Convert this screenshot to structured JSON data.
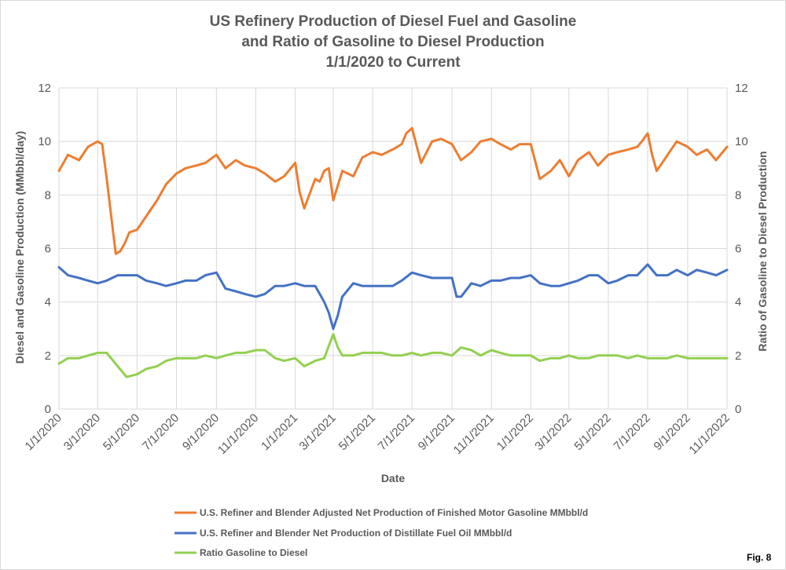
{
  "chart_data": {
    "type": "line",
    "title": [
      "US Refinery Production of Diesel Fuel and Gasoline",
      "and Ratio of Gasoline to Diesel Production",
      "1/1/2020 to Current"
    ],
    "xlabel": "Date",
    "ylabel_left": "Diesel and Gasoline Production (MMbbl/day)",
    "ylabel_right": "Ratio of Gasoline to Diesel Production",
    "ylim": [
      0,
      12
    ],
    "y2lim": [
      0,
      12
    ],
    "yticks": [
      0,
      2,
      4,
      6,
      8,
      10,
      12
    ],
    "xlim": [
      "2020-01-01",
      "2022-11-01"
    ],
    "xticks": [
      {
        "date": "2020-01-01",
        "label": "1/1/2020"
      },
      {
        "date": "2020-03-01",
        "label": "3/1/2020"
      },
      {
        "date": "2020-05-01",
        "label": "5/1/2020"
      },
      {
        "date": "2020-07-01",
        "label": "7/1/2020"
      },
      {
        "date": "2020-09-01",
        "label": "9/1/2020"
      },
      {
        "date": "2020-11-01",
        "label": "11/1/2020"
      },
      {
        "date": "2021-01-01",
        "label": "1/1/2021"
      },
      {
        "date": "2021-03-01",
        "label": "3/1/2021"
      },
      {
        "date": "2021-05-01",
        "label": "5/1/2021"
      },
      {
        "date": "2021-07-01",
        "label": "7/1/2021"
      },
      {
        "date": "2021-09-01",
        "label": "9/1/2021"
      },
      {
        "date": "2021-11-01",
        "label": "11/1/2021"
      },
      {
        "date": "2022-01-01",
        "label": "1/1/2022"
      },
      {
        "date": "2022-03-01",
        "label": "3/1/2022"
      },
      {
        "date": "2022-05-01",
        "label": "5/1/2022"
      },
      {
        "date": "2022-07-01",
        "label": "7/1/2022"
      },
      {
        "date": "2022-09-01",
        "label": "9/1/2022"
      },
      {
        "date": "2022-11-01",
        "label": "11/1/2022"
      }
    ],
    "grid": true,
    "legend_position": "bottom",
    "series": [
      {
        "name": "U.S. Refiner and Blender Adjusted Net Production of Finished Motor Gasoline MMbbl/d",
        "color": "#ED7D31",
        "axis": "left",
        "x": [
          "2020-01-01",
          "2020-01-15",
          "2020-02-01",
          "2020-02-15",
          "2020-03-01",
          "2020-03-08",
          "2020-03-15",
          "2020-03-22",
          "2020-03-29",
          "2020-04-05",
          "2020-04-12",
          "2020-04-19",
          "2020-05-01",
          "2020-05-15",
          "2020-06-01",
          "2020-06-15",
          "2020-07-01",
          "2020-07-15",
          "2020-08-01",
          "2020-08-15",
          "2020-09-01",
          "2020-09-15",
          "2020-10-01",
          "2020-10-15",
          "2020-11-01",
          "2020-11-15",
          "2020-12-01",
          "2020-12-15",
          "2021-01-01",
          "2021-01-08",
          "2021-01-15",
          "2021-02-01",
          "2021-02-08",
          "2021-02-15",
          "2021-02-22",
          "2021-03-01",
          "2021-03-15",
          "2021-04-01",
          "2021-04-15",
          "2021-05-01",
          "2021-05-15",
          "2021-06-01",
          "2021-06-15",
          "2021-06-22",
          "2021-07-01",
          "2021-07-15",
          "2021-08-01",
          "2021-08-15",
          "2021-09-01",
          "2021-09-15",
          "2021-10-01",
          "2021-10-15",
          "2021-11-01",
          "2021-11-15",
          "2021-12-01",
          "2021-12-15",
          "2022-01-01",
          "2022-01-15",
          "2022-02-01",
          "2022-02-15",
          "2022-03-01",
          "2022-03-15",
          "2022-04-01",
          "2022-04-15",
          "2022-05-01",
          "2022-05-15",
          "2022-06-01",
          "2022-06-15",
          "2022-06-22",
          "2022-07-01",
          "2022-07-08",
          "2022-07-15",
          "2022-08-01",
          "2022-08-15",
          "2022-09-01",
          "2022-09-15",
          "2022-10-01",
          "2022-10-15",
          "2022-11-01"
        ],
        "values": [
          8.9,
          9.5,
          9.3,
          9.8,
          10.0,
          9.9,
          8.6,
          7.2,
          5.8,
          5.9,
          6.2,
          6.6,
          6.7,
          7.2,
          7.8,
          8.4,
          8.8,
          9.0,
          9.1,
          9.2,
          9.5,
          9.0,
          9.3,
          9.1,
          9.0,
          8.8,
          8.5,
          8.7,
          9.2,
          8.1,
          7.5,
          8.6,
          8.5,
          8.9,
          9.0,
          7.8,
          8.9,
          8.7,
          9.4,
          9.6,
          9.5,
          9.7,
          9.9,
          10.3,
          10.5,
          9.2,
          10.0,
          10.1,
          9.9,
          9.3,
          9.6,
          10.0,
          10.1,
          9.9,
          9.7,
          9.9,
          9.9,
          8.6,
          8.9,
          9.3,
          8.7,
          9.3,
          9.6,
          9.1,
          9.5,
          9.6,
          9.7,
          9.8,
          10.0,
          10.3,
          9.5,
          8.9,
          9.5,
          10.0,
          9.8,
          9.5,
          9.7,
          9.3,
          9.8
        ]
      },
      {
        "name": "U.S. Refiner and Blender Net Production of Distillate Fuel Oil MMbbl/d",
        "color": "#4472C4",
        "axis": "left",
        "x": [
          "2020-01-01",
          "2020-01-15",
          "2020-02-01",
          "2020-02-15",
          "2020-03-01",
          "2020-03-15",
          "2020-04-01",
          "2020-04-15",
          "2020-05-01",
          "2020-05-15",
          "2020-06-01",
          "2020-06-15",
          "2020-07-01",
          "2020-07-15",
          "2020-08-01",
          "2020-08-15",
          "2020-09-01",
          "2020-09-15",
          "2020-10-01",
          "2020-10-15",
          "2020-11-01",
          "2020-11-15",
          "2020-12-01",
          "2020-12-15",
          "2021-01-01",
          "2021-01-15",
          "2021-02-01",
          "2021-02-08",
          "2021-02-15",
          "2021-02-22",
          "2021-03-01",
          "2021-03-08",
          "2021-03-15",
          "2021-04-01",
          "2021-04-15",
          "2021-05-01",
          "2021-05-15",
          "2021-06-01",
          "2021-06-15",
          "2021-07-01",
          "2021-07-15",
          "2021-08-01",
          "2021-08-15",
          "2021-09-01",
          "2021-09-08",
          "2021-09-15",
          "2021-10-01",
          "2021-10-15",
          "2021-11-01",
          "2021-11-15",
          "2021-12-01",
          "2021-12-15",
          "2022-01-01",
          "2022-01-15",
          "2022-02-01",
          "2022-02-15",
          "2022-03-01",
          "2022-03-15",
          "2022-04-01",
          "2022-04-15",
          "2022-05-01",
          "2022-05-15",
          "2022-06-01",
          "2022-06-15",
          "2022-07-01",
          "2022-07-15",
          "2022-08-01",
          "2022-08-15",
          "2022-09-01",
          "2022-09-15",
          "2022-10-01",
          "2022-10-15",
          "2022-11-01"
        ],
        "values": [
          5.3,
          5.0,
          4.9,
          4.8,
          4.7,
          4.8,
          5.0,
          5.0,
          5.0,
          4.8,
          4.7,
          4.6,
          4.7,
          4.8,
          4.8,
          5.0,
          5.1,
          4.5,
          4.4,
          4.3,
          4.2,
          4.3,
          4.6,
          4.6,
          4.7,
          4.6,
          4.6,
          4.3,
          4.0,
          3.6,
          3.0,
          3.5,
          4.2,
          4.7,
          4.6,
          4.6,
          4.6,
          4.6,
          4.8,
          5.1,
          5.0,
          4.9,
          4.9,
          4.9,
          4.2,
          4.2,
          4.7,
          4.6,
          4.8,
          4.8,
          4.9,
          4.9,
          5.0,
          4.7,
          4.6,
          4.6,
          4.7,
          4.8,
          5.0,
          5.0,
          4.7,
          4.8,
          5.0,
          5.0,
          5.4,
          5.0,
          5.0,
          5.2,
          5.0,
          5.2,
          5.1,
          5.0,
          5.2
        ]
      },
      {
        "name": "Ratio Gasoline to Diesel",
        "color": "#92D050",
        "axis": "right",
        "x": [
          "2020-01-01",
          "2020-01-15",
          "2020-02-01",
          "2020-02-15",
          "2020-03-01",
          "2020-03-15",
          "2020-04-01",
          "2020-04-15",
          "2020-05-01",
          "2020-05-15",
          "2020-06-01",
          "2020-06-15",
          "2020-07-01",
          "2020-07-15",
          "2020-08-01",
          "2020-08-15",
          "2020-09-01",
          "2020-09-15",
          "2020-10-01",
          "2020-10-15",
          "2020-11-01",
          "2020-11-15",
          "2020-12-01",
          "2020-12-15",
          "2021-01-01",
          "2021-01-15",
          "2021-02-01",
          "2021-02-15",
          "2021-03-01",
          "2021-03-08",
          "2021-03-15",
          "2021-04-01",
          "2021-04-15",
          "2021-05-01",
          "2021-05-15",
          "2021-06-01",
          "2021-06-15",
          "2021-07-01",
          "2021-07-15",
          "2021-08-01",
          "2021-08-15",
          "2021-09-01",
          "2021-09-15",
          "2021-10-01",
          "2021-10-15",
          "2021-11-01",
          "2021-11-15",
          "2021-12-01",
          "2021-12-15",
          "2022-01-01",
          "2022-01-15",
          "2022-02-01",
          "2022-02-15",
          "2022-03-01",
          "2022-03-15",
          "2022-04-01",
          "2022-04-15",
          "2022-05-01",
          "2022-05-15",
          "2022-06-01",
          "2022-06-15",
          "2022-07-01",
          "2022-07-15",
          "2022-08-01",
          "2022-08-15",
          "2022-09-01",
          "2022-09-15",
          "2022-10-01",
          "2022-10-15",
          "2022-11-01"
        ],
        "values": [
          1.7,
          1.9,
          1.9,
          2.0,
          2.1,
          2.1,
          1.6,
          1.2,
          1.3,
          1.5,
          1.6,
          1.8,
          1.9,
          1.9,
          1.9,
          2.0,
          1.9,
          2.0,
          2.1,
          2.1,
          2.2,
          2.2,
          1.9,
          1.8,
          1.9,
          1.6,
          1.8,
          1.9,
          2.8,
          2.3,
          2.0,
          2.0,
          2.1,
          2.1,
          2.1,
          2.0,
          2.0,
          2.1,
          2.0,
          2.1,
          2.1,
          2.0,
          2.3,
          2.2,
          2.0,
          2.2,
          2.1,
          2.0,
          2.0,
          2.0,
          1.8,
          1.9,
          1.9,
          2.0,
          1.9,
          1.9,
          2.0,
          2.0,
          2.0,
          1.9,
          2.0,
          1.9,
          1.9,
          1.9,
          2.0,
          1.9,
          1.9,
          1.9,
          1.9,
          1.9
        ]
      }
    ],
    "annotation": "Fig. 8"
  }
}
